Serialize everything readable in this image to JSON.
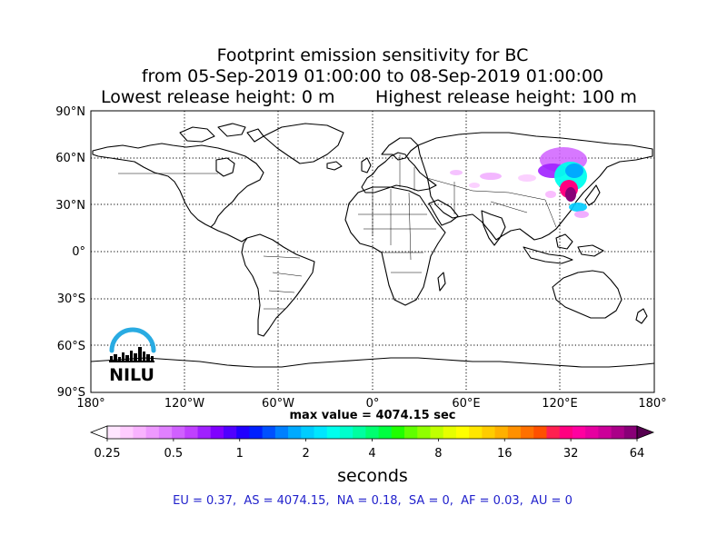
{
  "title": {
    "line1": "Footprint emission sensitivity for BC",
    "line2": "from 05-Sep-2019 01:00:00 to 08-Sep-2019 01:00:00",
    "lowest": "Lowest release height: 0 m",
    "highest": "Highest release height: 100 m"
  },
  "map": {
    "lat_labels": [
      "90°N",
      "60°N",
      "30°N",
      "0°",
      "30°S",
      "60°S",
      "90°S"
    ],
    "lon_labels": [
      "180°",
      "120°W",
      "60°W",
      "0°",
      "60°E",
      "120°E",
      "180°"
    ],
    "logo_text": "NILU",
    "max_value": "max value = 4074.15 sec"
  },
  "colorbar": {
    "ticks": [
      "0.25",
      "0.5",
      "1",
      "2",
      "4",
      "8",
      "16",
      "32",
      "64"
    ],
    "unit": "seconds",
    "colors": [
      "#ffe6ff",
      "#ffccff",
      "#f9b3ff",
      "#ee99ff",
      "#e080ff",
      "#d060ff",
      "#c040ff",
      "#a020ff",
      "#8000ff",
      "#5000ff",
      "#2000ff",
      "#0020ff",
      "#0050ff",
      "#0080ff",
      "#00aaff",
      "#00ccff",
      "#00e6ff",
      "#00ffee",
      "#00ffcc",
      "#00ffa0",
      "#00ff70",
      "#00ff40",
      "#20ff00",
      "#60ff00",
      "#90ff00",
      "#c0ff00",
      "#e6ff00",
      "#ffff00",
      "#ffe600",
      "#ffcc00",
      "#ffb000",
      "#ff9000",
      "#ff7000",
      "#ff5000",
      "#ff2050",
      "#ff0080",
      "#ff00a0",
      "#e600a0",
      "#cc0099",
      "#aa0088",
      "#880077"
    ]
  },
  "stats": "EU = 0.37,  AS = 4074.15,  NA = 0.18,  SA = 0,  AF = 0.03,  AU = 0"
}
